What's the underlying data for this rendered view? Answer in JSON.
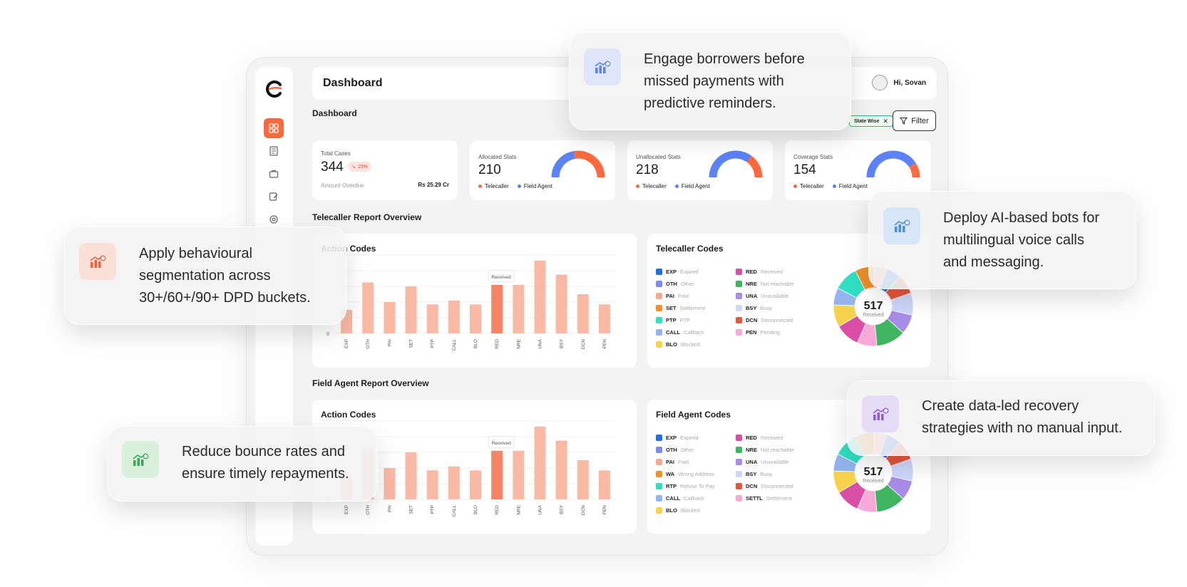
{
  "topbar": {
    "title": "Dashboard",
    "user": "Hi, Sovan"
  },
  "dashboard": {
    "section_title": "Dashboard",
    "chip": "State Wise",
    "filter": "Filter"
  },
  "stats": {
    "total": {
      "label": "Total Cases",
      "value": "344",
      "badge": "15%",
      "overdue_label": "Amount Overdue",
      "overdue_value": "Rs 25.29 Cr"
    },
    "allocated": {
      "label": "Allocated Stats",
      "value": "210",
      "legend": [
        "Telecaller",
        "Field Agent"
      ],
      "share": 0.55
    },
    "unallocated": {
      "label": "Unallocated Stats",
      "value": "218",
      "legend": [
        "Telecaller",
        "Field Agent"
      ],
      "share": 0.3
    },
    "coverage": {
      "label": "Coverage Stats",
      "value": "154",
      "legend": [
        "Telecaller",
        "Field Agent"
      ],
      "share": 0.18
    }
  },
  "colors": {
    "accent": "#fb6a3f",
    "blue": "#5b82f6",
    "bar": "#f9b9a5",
    "bar_highlight": "#f78462"
  },
  "telecaller": {
    "section_title": "Telecaller Report Overview",
    "action_title": "Action Codes",
    "codes_title": "Telecaller Codes",
    "tooltip": "Received",
    "donut_value": "517",
    "donut_label": "Received",
    "codes": [
      {
        "abbr": "EXP",
        "name": "Expired",
        "color": "#1f6fe8"
      },
      {
        "abbr": "RED",
        "name": "Received",
        "color": "#d94fa6"
      },
      {
        "abbr": "OTH",
        "name": "Other",
        "color": "#7a8cf0"
      },
      {
        "abbr": "NRE",
        "name": "Not reachable",
        "color": "#3fb55f"
      },
      {
        "abbr": "PAI",
        "name": "Paid",
        "color": "#f5a98e"
      },
      {
        "abbr": "UNA",
        "name": "Unavailable",
        "color": "#a98be8"
      },
      {
        "abbr": "SET",
        "name": "Settlement",
        "color": "#f0902b"
      },
      {
        "abbr": "BSY",
        "name": "Busy",
        "color": "#cfd6fb"
      },
      {
        "abbr": "PTP",
        "name": "PTP",
        "color": "#2fe0c2"
      },
      {
        "abbr": "DCN",
        "name": "Disconnected",
        "color": "#e4573c"
      },
      {
        "abbr": "CALL",
        "name": "Callback",
        "color": "#94b4ef"
      },
      {
        "abbr": "PEN",
        "name": "Pending",
        "color": "#f7a9d8"
      },
      {
        "abbr": "BLO",
        "name": "Blocked",
        "color": "#f6d24c"
      }
    ]
  },
  "field_agent": {
    "section_title": "Field Agent Report Overview",
    "action_title": "Action Codes",
    "codes_title": "Field Agent Codes",
    "tooltip": "Received",
    "donut_value": "517",
    "donut_label": "Received",
    "codes": [
      {
        "abbr": "EXP",
        "name": "Expired",
        "color": "#1f6fe8"
      },
      {
        "abbr": "RED",
        "name": "Received",
        "color": "#d94fa6"
      },
      {
        "abbr": "OTH",
        "name": "Other",
        "color": "#7a8cf0"
      },
      {
        "abbr": "NRE",
        "name": "Not reachable",
        "color": "#3fb55f"
      },
      {
        "abbr": "PAI",
        "name": "Paid",
        "color": "#f5a98e"
      },
      {
        "abbr": "UNA",
        "name": "Unavailable",
        "color": "#a98be8"
      },
      {
        "abbr": "WA",
        "name": "Wrong Address",
        "color": "#f0902b"
      },
      {
        "abbr": "BSY",
        "name": "Busy",
        "color": "#cfd6fb"
      },
      {
        "abbr": "RTP",
        "name": "Refuse To Pay",
        "color": "#2fe0c2"
      },
      {
        "abbr": "DCN",
        "name": "Disconnected",
        "color": "#e4573c"
      },
      {
        "abbr": "CALL",
        "name": "Callback",
        "color": "#94b4ef"
      },
      {
        "abbr": "SETTL",
        "name": "Settlement",
        "color": "#f7a9d8"
      },
      {
        "abbr": "BLO",
        "name": "Blocked",
        "color": "#f6d24c"
      }
    ]
  },
  "chart_data": [
    {
      "type": "bar",
      "categories": [
        "EXP",
        "OTH",
        "PAI",
        "SET",
        "PTP",
        "CALL",
        "BLO",
        "RED",
        "NRE",
        "UNA",
        "BSY",
        "DCN",
        "PEN"
      ],
      "values": [
        30,
        65,
        40,
        60,
        37,
        42,
        37,
        62,
        62,
        93,
        75,
        50,
        37
      ],
      "highlight": "RED",
      "ylim": [
        0,
        100
      ],
      "ytick_label": "0"
    },
    {
      "type": "bar",
      "categories": [
        "EXP",
        "OTH",
        "PAI",
        "SET",
        "PTP",
        "CALL",
        "BLO",
        "RED",
        "NRE",
        "UNA",
        "BSY",
        "DCN",
        "PEN"
      ],
      "values": [
        30,
        65,
        40,
        60,
        37,
        42,
        37,
        62,
        62,
        93,
        75,
        50,
        37
      ],
      "highlight": "RED",
      "ylim": [
        0,
        100
      ],
      "ytick_label": "0"
    },
    {
      "type": "pie",
      "labels": [
        "EXP",
        "DCN",
        "BSY",
        "UNA",
        "NRE",
        "PEN",
        "RED",
        "BLO",
        "CALL",
        "PTP",
        "SET",
        "PAI"
      ],
      "values": [
        6,
        8,
        9,
        8,
        12,
        8,
        10,
        9,
        7,
        10,
        8,
        5
      ],
      "colors": [
        "#1f6fe8",
        "#e4573c",
        "#cfd6fb",
        "#a98be8",
        "#3fb55f",
        "#f7a9d8",
        "#d94fa6",
        "#f6d24c",
        "#94b4ef",
        "#2fe0c2",
        "#f0902b",
        "#f5a98e"
      ]
    },
    {
      "type": "pie",
      "labels": [
        "EXP",
        "DCN",
        "BSY",
        "UNA",
        "NRE",
        "SETTL",
        "RED",
        "BLO",
        "CALL",
        "RTP",
        "WA",
        "PAI"
      ],
      "values": [
        6,
        8,
        9,
        8,
        12,
        8,
        10,
        9,
        7,
        10,
        8,
        5
      ],
      "colors": [
        "#1f6fe8",
        "#e4573c",
        "#cfd6fb",
        "#a98be8",
        "#3fb55f",
        "#f7a9d8",
        "#d94fa6",
        "#f6d24c",
        "#94b4ef",
        "#2fe0c2",
        "#f0902b",
        "#f5a98e"
      ]
    }
  ],
  "callouts": {
    "reminders": {
      "text_lines": [
        "Engage borrowers before",
        "missed payments with",
        "predictive reminders."
      ],
      "icon_bg": "#dfe6fb",
      "icon_color": "#5b82f6"
    },
    "bots": {
      "text_lines": [
        "Deploy AI-based bots for",
        "multilingual voice calls",
        "and messaging."
      ],
      "icon_bg": "#d6e6f6",
      "icon_color": "#4a8fd8"
    },
    "segmentation": {
      "text_lines": [
        "Apply behavioural",
        "segmentation across",
        "30+/60+/90+ DPD buckets."
      ],
      "icon_bg": "#fbe0da",
      "icon_color": "#f0603a"
    },
    "recovery": {
      "text_lines": [
        "Create data-led recovery",
        "strategies with no manual input."
      ],
      "icon_bg": "#e6dcf8",
      "icon_color": "#8a62d8"
    },
    "bounce": {
      "text_lines": [
        "Reduce bounce rates and",
        "ensure timely repayments."
      ],
      "icon_bg": "#d9f0dd",
      "icon_color": "#3aaa55"
    }
  }
}
